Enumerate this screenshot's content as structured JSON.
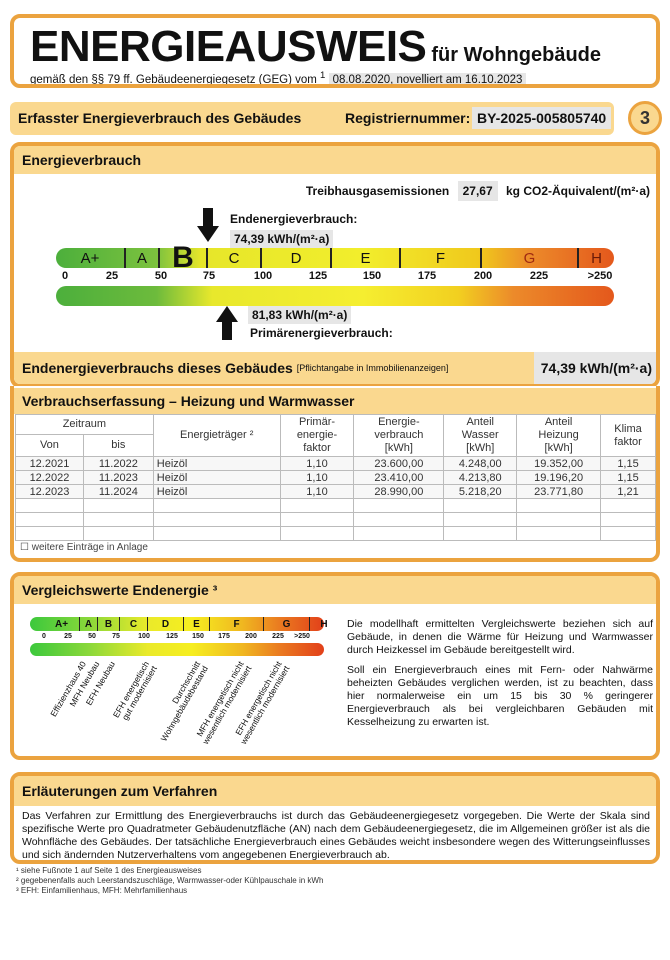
{
  "header": {
    "title": "ENERGIEAUSWEIS",
    "subtitle": "für Wohngebäude",
    "law_text": "gemäß den §§ 79 ff. Gebäudeenergiegesetz (GEG) vom",
    "law_footnote": "1",
    "law_date": "08.08.2020, novelliert am 16.10.2023"
  },
  "info_bar": {
    "label": "Erfasster Energieverbrauch des Gebäudes",
    "reg_label": "Registriernummer:",
    "reg_number": "BY-2025-005805740",
    "page_number": "3"
  },
  "energy": {
    "title": "Energieverbrauch",
    "ghg_label": "Treibhausgasemissionen",
    "ghg_value": "27,67",
    "ghg_unit": "kg CO2-Äquivalent/(m²·a)",
    "end_label": "Endenergieverbrauch:",
    "end_value": "74,39 kWh/(m²·a)",
    "end_numeric": 74.39,
    "primary_label": "Primärenergieverbrauch:",
    "primary_value": "81,83 kWh/(m²·a)",
    "primary_numeric": 81.83,
    "current_class": "B",
    "classes": [
      "A+",
      "A",
      "",
      "C",
      "D",
      "E",
      "F",
      "G",
      "H"
    ],
    "ticks": [
      "0",
      "25",
      "50",
      "75",
      "100",
      "125",
      "150",
      "175",
      "200",
      "225",
      ">250"
    ],
    "summary_label": "Endenergieverbrauchs dieses Gebäudes",
    "summary_note": "[Pflichtangabe in Immobilienanzeigen]",
    "summary_value": "74,39 kWh/(m²·a)"
  },
  "consumption": {
    "title": "Verbrauchserfassung – Heizung und Warmwasser",
    "headers": {
      "period": "Zeitraum",
      "from": "Von",
      "to": "bis",
      "carrier": "Energieträger ²",
      "primary": "Primär-\nenergie-\nfaktor",
      "energy": "Energie-\nverbrauch\n[kWh]",
      "water": "Anteil\nWasser\n[kWh]",
      "heating": "Anteil\nHeizung\n[kWh]",
      "climate": "Klima\nfaktor"
    },
    "rows": [
      [
        "12.2021",
        "11.2022",
        "Heizöl",
        "1,10",
        "23.600,00",
        "4.248,00",
        "19.352,00",
        "1,15"
      ],
      [
        "12.2022",
        "11.2023",
        "Heizöl",
        "1,10",
        "23.410,00",
        "4.213,80",
        "19.196,20",
        "1,15"
      ],
      [
        "12.2023",
        "11.2024",
        "Heizöl",
        "1,10",
        "28.990,00",
        "5.218,20",
        "23.771,80",
        "1,21"
      ]
    ],
    "more_entries": "☐ weitere Einträge in Anlage"
  },
  "comparison": {
    "title": "Vergleichswerte Endenergie ³",
    "classes": [
      "A+",
      "A",
      "B",
      "C",
      "D",
      "E",
      "F",
      "G",
      "H"
    ],
    "ticks": [
      "0",
      "25",
      "50",
      "75",
      "100",
      "125",
      "150",
      "175",
      "200",
      "225",
      ">250"
    ],
    "labels": [
      "Effizienzhaus 40",
      "MFH Neubau",
      "EFH Neubau",
      "EFH energetisch\ngut modernisiert",
      "Durchschnitt\nWohngebäudebestand",
      "MFH energetisch nicht\nwesentlich modernisiert",
      "EFH energetisch nicht\nwesentlich modernisiert"
    ],
    "text1": "Die modellhaft ermittelten Vergleichswerte beziehen sich auf Gebäude, in denen die Wärme für Heizung und Warmwasser durch Heizkessel im Gebäude bereitgestellt wird.",
    "text2": "Soll ein Energieverbrauch eines mit Fern- oder Nahwärme beheizten Gebäudes verglichen werden, ist zu beachten, dass hier normalerweise ein um 15 bis 30 % geringerer Energieverbrauch als bei vergleichbaren Gebäuden mit Kesselheizung zu erwarten ist."
  },
  "explanation": {
    "title": "Erläuterungen zum Verfahren",
    "text": "Das Verfahren zur Ermittlung des Energieverbrauchs ist durch das Gebäudeenergiegesetz vorgegeben. Die Werte der Skala sind spezifische Werte pro Quadratmeter Gebäudenutzfläche (AN) nach dem Gebäudeenergiegesetz, die im Allgemeinen größer ist als die Wohnfläche des Gebäudes. Der tatsächliche Energieverbrauch eines Gebäudes weicht insbesondere wegen des Witterungseinflusses und sich ändernden Nutzerverhaltens vom angegebenen Energieverbrauch ab."
  },
  "footnotes": [
    "¹ siehe Fußnote 1 auf Seite 1 des Energieausweises",
    "² gegebenenfalls auch Leerstandszuschläge, Warmwasser-oder Kühlpauschale in kWh",
    "³ EFH: Einfamilienhaus, MFH: Mehrfamilienhaus"
  ]
}
